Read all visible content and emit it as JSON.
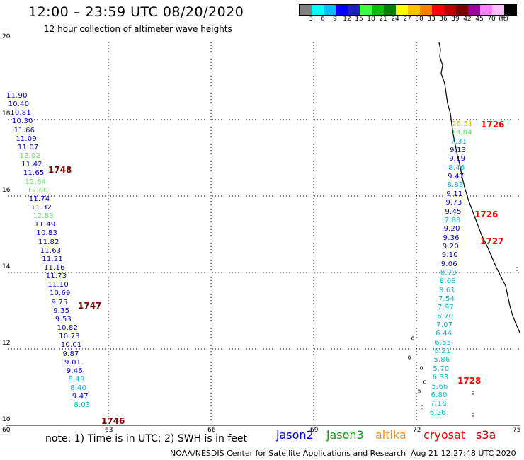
{
  "title": "12:00 – 23:59 UTC 08/20/2020",
  "subtitle": "12 hour collection of altimeter wave heights",
  "legend": {
    "colors": [
      "#808080",
      "#00ffff",
      "#00c0ff",
      "#0000ff",
      "#2020c0",
      "#40ff40",
      "#00c000",
      "#008000",
      "#ffff00",
      "#ffc000",
      "#ff8000",
      "#ff0000",
      "#c00000",
      "#800000",
      "#a000a0",
      "#ff80ff",
      "#ffc0ff",
      "#000000"
    ],
    "labels": [
      "3",
      "6",
      "9",
      "12",
      "15",
      "18",
      "21",
      "24",
      "27",
      "30",
      "33",
      "36",
      "39",
      "42",
      "45",
      "70",
      "(ft)"
    ]
  },
  "axes": {
    "lat_labels": [
      "10",
      "12",
      "14",
      "16",
      "18",
      "20"
    ],
    "lon_labels": [
      "60",
      "63",
      "66",
      "69",
      "72",
      "75"
    ]
  },
  "colors": {
    "jason2": "#0000d0",
    "jason3": "#00a000",
    "altika": "#ff8c00",
    "cryosat": "#ff0000",
    "s3a": "#c00000",
    "cyan": "#00b8d8",
    "light_green": "#60e060",
    "dark_red": "#800000",
    "yellow": "#e0c000"
  },
  "left_track": [
    {
      "v": "11.90",
      "c": "jason2"
    },
    {
      "v": "10.40",
      "c": "jason2"
    },
    {
      "v": "10.81",
      "c": "jason2"
    },
    {
      "v": "10.30",
      "c": "jason2"
    },
    {
      "v": "11.66",
      "c": "jason2"
    },
    {
      "v": "11.09",
      "c": "jason2"
    },
    {
      "v": "11.07",
      "c": "jason2"
    },
    {
      "v": "12.02",
      "c": "light_green"
    },
    {
      "v": "11.42",
      "c": "jason2"
    },
    {
      "v": "11.65",
      "c": "jason2"
    },
    {
      "v": "12.64",
      "c": "light_green"
    },
    {
      "v": "12.60",
      "c": "light_green"
    },
    {
      "v": "11.74",
      "c": "jason2"
    },
    {
      "v": "11.32",
      "c": "jason2"
    },
    {
      "v": "12.83",
      "c": "light_green"
    },
    {
      "v": "11.49",
      "c": "jason2"
    },
    {
      "v": "10.83",
      "c": "jason2"
    },
    {
      "v": "11.82",
      "c": "jason2"
    },
    {
      "v": "11.63",
      "c": "jason2"
    },
    {
      "v": "11.21",
      "c": "jason2"
    },
    {
      "v": "11.16",
      "c": "jason2"
    },
    {
      "v": "11.73",
      "c": "jason2"
    },
    {
      "v": "11.10",
      "c": "jason2"
    },
    {
      "v": "10.69",
      "c": "jason2"
    },
    {
      "v": "9.75",
      "c": "jason2"
    },
    {
      "v": "9.35",
      "c": "jason2"
    },
    {
      "v": "9.53",
      "c": "jason2"
    },
    {
      "v": "10.82",
      "c": "jason2"
    },
    {
      "v": "10.73",
      "c": "jason2"
    },
    {
      "v": "10.01",
      "c": "jason2"
    },
    {
      "v": "9.87",
      "c": "jason2"
    },
    {
      "v": "9.01",
      "c": "jason2"
    },
    {
      "v": "9.46",
      "c": "jason2"
    },
    {
      "v": "8.49",
      "c": "cyan"
    },
    {
      "v": "8.40",
      "c": "cyan"
    },
    {
      "v": "9.47",
      "c": "jason2"
    },
    {
      "v": "8.03",
      "c": "cyan"
    }
  ],
  "left_times": [
    "1748",
    "1747",
    "1746"
  ],
  "right_track": [
    {
      "v": "26.51",
      "c": "yellow"
    },
    {
      "v": "13.84",
      "c": "light_green"
    },
    {
      "v": "7.31",
      "c": "cyan"
    },
    {
      "v": "9.13",
      "c": "jason2"
    },
    {
      "v": "9.19",
      "c": "jason2"
    },
    {
      "v": "8.46",
      "c": "cyan"
    },
    {
      "v": "9.47",
      "c": "jason2"
    },
    {
      "v": "8.83",
      "c": "cyan"
    },
    {
      "v": "9.11",
      "c": "jason2"
    },
    {
      "v": "9.73",
      "c": "jason2"
    },
    {
      "v": "9.45",
      "c": "jason2"
    },
    {
      "v": "7.88",
      "c": "cyan"
    },
    {
      "v": "9.20",
      "c": "jason2"
    },
    {
      "v": "9.36",
      "c": "jason2"
    },
    {
      "v": "9.20",
      "c": "jason2"
    },
    {
      "v": "9.10",
      "c": "jason2"
    },
    {
      "v": "9.06",
      "c": "jason2"
    },
    {
      "v": "8.73",
      "c": "cyan"
    },
    {
      "v": "8.08",
      "c": "cyan"
    },
    {
      "v": "8.61",
      "c": "cyan"
    },
    {
      "v": "7.54",
      "c": "cyan"
    },
    {
      "v": "7.97",
      "c": "cyan"
    },
    {
      "v": "6.70",
      "c": "cyan"
    },
    {
      "v": "7.07",
      "c": "cyan"
    },
    {
      "v": "6.44",
      "c": "cyan"
    },
    {
      "v": "6.55",
      "c": "cyan"
    },
    {
      "v": "6.21",
      "c": "cyan"
    },
    {
      "v": "5.86",
      "c": "cyan"
    },
    {
      "v": "5.70",
      "c": "cyan"
    },
    {
      "v": "6.33",
      "c": "cyan"
    },
    {
      "v": "5.66",
      "c": "cyan"
    },
    {
      "v": "6.80",
      "c": "cyan"
    },
    {
      "v": "7.18",
      "c": "cyan"
    },
    {
      "v": "6.26",
      "c": "cyan"
    }
  ],
  "right_times": [
    "1726",
    "1726",
    "1727",
    "1728"
  ],
  "note": "note:  1) Time is in UTC; 2) SWH is in feet",
  "satellites": {
    "jason2": "jason2",
    "jason3": "jason3",
    "altika": "altika",
    "cryosat": "cryosat",
    "s3a": "s3a"
  },
  "credit": "NOAA/NESDIS Center for Satellite Applications and Research",
  "timestamp": "Aug 21 12:27:48 UTC 2020"
}
